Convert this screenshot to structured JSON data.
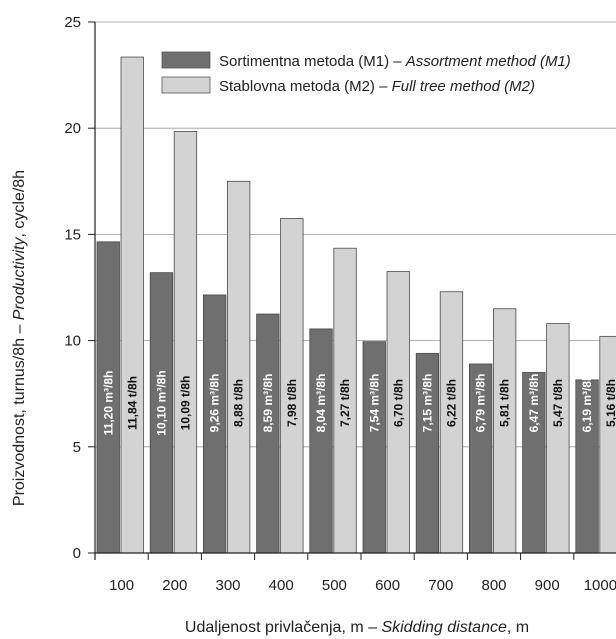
{
  "chart_data": {
    "type": "bar",
    "ylabel_plain": "Proizvodnost, turnus/8h  –",
    "ylabel_italic": "Productivity",
    "ylabel_tail": ", cycle/8h",
    "xlabel_plain": "Udaljenost privlačenja, m  –",
    "xlabel_italic": "Skidding distance",
    "xlabel_tail": ", m",
    "ylim": [
      0,
      25
    ],
    "yticks": [
      "0",
      "5",
      "10",
      "15",
      "20",
      "25"
    ],
    "categories": [
      "100",
      "200",
      "300",
      "400",
      "500",
      "600",
      "700",
      "800",
      "900",
      "1000"
    ],
    "grid": "horizontal",
    "legend_position": "top-right",
    "series": [
      {
        "name_plain": "Sortimentna metoda (M1) –",
        "name_italic": "Assortment method (M1)",
        "color": "#6f6f6f",
        "values": [
          14.65,
          13.2,
          12.15,
          11.25,
          10.55,
          9.95,
          9.4,
          8.9,
          8.5,
          8.15
        ],
        "labels": [
          "11,20 m³/8h",
          "10,10 m³/8h",
          "9,26 m³/8h",
          "8,59 m³/8h",
          "8,04 m³/8h",
          "7,54 m³/8h",
          "7,15 m³/8h",
          "6,79 m³/8h",
          "6,47 m³/8h",
          "6,19 m³/8h"
        ]
      },
      {
        "name_plain": "Stablovna metoda (M2) –",
        "name_italic": "Full tree method (M2)",
        "color": "#d3d3d3",
        "values": [
          23.35,
          19.85,
          17.5,
          15.75,
          14.35,
          13.25,
          12.3,
          11.5,
          10.8,
          10.2
        ],
        "labels": [
          "11,84 t/8h",
          "10,09 t/8h",
          "8,88 t/8h",
          "7,98 t/8h",
          "7,27 t/8h",
          "6,70 t/8h",
          "6,22 t/8h",
          "5,81 t/8h",
          "5,47 t/8h",
          "5,16 t/8h"
        ]
      }
    ]
  }
}
